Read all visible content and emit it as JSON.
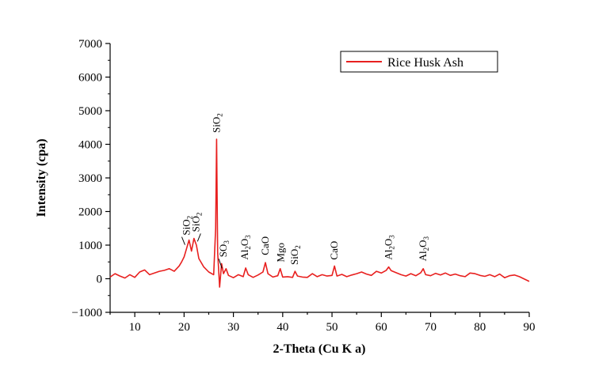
{
  "chart_data": {
    "type": "line",
    "title": "",
    "xlabel": "2-Theta (Cu K a)",
    "ylabel": "Intensity (cpa)",
    "xlim": [
      5,
      90
    ],
    "ylim": [
      -1000,
      7000
    ],
    "xticks": [
      10,
      20,
      30,
      40,
      50,
      60,
      70,
      80,
      90
    ],
    "yticks": [
      -1000,
      0,
      1000,
      2000,
      3000,
      4000,
      5000,
      6000,
      7000
    ],
    "xtick_labels": [
      "10",
      "20",
      "30",
      "40",
      "50",
      "60",
      "70",
      "80",
      "90"
    ],
    "ytick_labels": [
      "−1000",
      "0",
      "1000",
      "2000",
      "3000",
      "4000",
      "5000",
      "6000",
      "7000"
    ],
    "grid": false,
    "legend_position": "top-right",
    "series": [
      {
        "name": "Rice Husk Ash",
        "color": "#e8201f",
        "x": [
          5,
          6,
          7,
          8,
          9,
          10,
          11,
          12,
          13,
          14,
          15,
          16,
          17,
          18,
          19,
          19.5,
          20,
          20.5,
          21,
          21.5,
          22,
          22.5,
          23,
          24,
          25,
          26,
          26.4,
          26.6,
          26.8,
          27.2,
          27.6,
          28,
          28.5,
          29,
          30,
          31,
          32,
          32.5,
          33,
          34,
          35,
          36,
          36.5,
          37,
          38,
          39,
          39.5,
          40,
          41,
          42,
          42.5,
          43,
          44,
          45,
          46,
          47,
          48,
          49,
          50,
          50.5,
          51,
          52,
          53,
          54,
          55,
          56,
          57,
          58,
          59,
          60,
          61,
          61.5,
          62,
          63,
          64,
          65,
          66,
          67,
          68,
          68.5,
          69,
          70,
          71,
          72,
          73,
          74,
          75,
          76,
          77,
          78,
          79,
          80,
          81,
          82,
          83,
          84,
          85,
          86,
          87,
          88,
          89,
          90
        ],
        "values": [
          50,
          150,
          80,
          20,
          120,
          40,
          200,
          260,
          120,
          170,
          220,
          250,
          300,
          220,
          380,
          500,
          650,
          900,
          1150,
          820,
          1200,
          1000,
          600,
          350,
          200,
          120,
          1500,
          4150,
          800,
          -250,
          450,
          150,
          300,
          100,
          30,
          120,
          60,
          320,
          120,
          40,
          110,
          200,
          480,
          150,
          50,
          90,
          300,
          50,
          60,
          40,
          220,
          80,
          50,
          40,
          150,
          60,
          120,
          80,
          100,
          380,
          80,
          130,
          60,
          110,
          150,
          200,
          140,
          100,
          220,
          170,
          250,
          350,
          240,
          180,
          120,
          80,
          150,
          90,
          180,
          300,
          120,
          90,
          160,
          110,
          170,
          100,
          140,
          90,
          60,
          170,
          150,
          100,
          70,
          120,
          60,
          140,
          30,
          90,
          110,
          60,
          -10,
          -80
        ]
      }
    ],
    "annotations": [
      {
        "label": "SiO",
        "sub": "2",
        "x": 20.5,
        "y": 1150
      },
      {
        "label": "SiO",
        "sub": "2",
        "x": 22.4,
        "y": 1250
      },
      {
        "label": "SiO",
        "sub": "2",
        "x": 26.6,
        "y": 4200
      },
      {
        "label": "SO",
        "sub": "3",
        "x": 28.0,
        "y": 500
      },
      {
        "label": "Al",
        "sub": "2",
        "tail": "O",
        "sub2": "3",
        "x": 32.3,
        "y": 420
      },
      {
        "label": "CaO",
        "sub": "",
        "x": 36.5,
        "y": 560
      },
      {
        "label": "Mgo",
        "sub": "",
        "x": 39.6,
        "y": 350
      },
      {
        "label": "SiO",
        "sub": "2",
        "x": 42.4,
        "y": 270
      },
      {
        "label": "CaO",
        "sub": "",
        "x": 50.5,
        "y": 420
      },
      {
        "label": "Al",
        "sub": "2",
        "tail": "O",
        "sub2": "3",
        "x": 61.5,
        "y": 420
      },
      {
        "label": "Al",
        "sub": "2",
        "tail": "O",
        "sub2": "3",
        "x": 68.5,
        "y": 380
      }
    ]
  }
}
